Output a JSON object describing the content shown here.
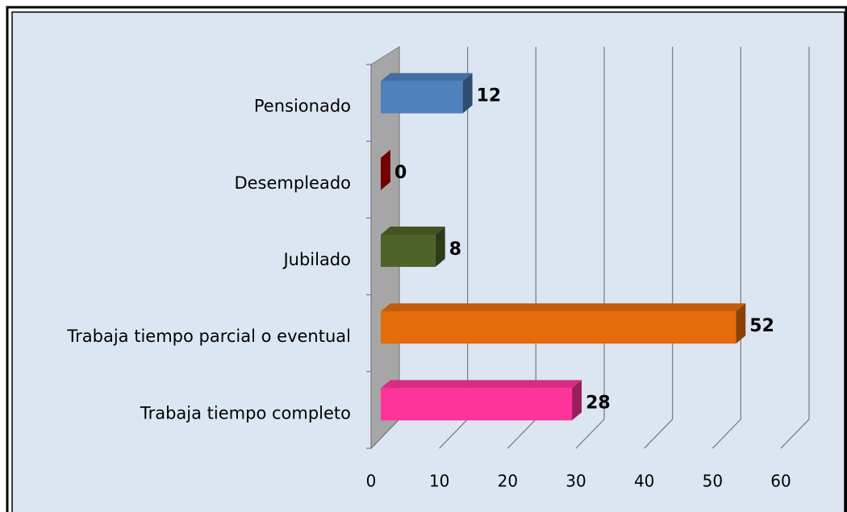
{
  "chart_data": {
    "type": "bar3d_horizontal",
    "categories": [
      "Pensionado",
      "Desempleado",
      "Jubilado",
      "Trabaja tiempo parcial o eventual",
      "Trabaja tiempo completo"
    ],
    "values": [
      12,
      0,
      8,
      52,
      28
    ],
    "colors": [
      "#4f81bd",
      "#c00000",
      "#4f6228",
      "#e46c0a",
      "#ff3399"
    ],
    "xlim": [
      0,
      60
    ],
    "xticks": [
      0,
      10,
      20,
      30,
      40,
      50,
      60
    ],
    "grid": true
  }
}
